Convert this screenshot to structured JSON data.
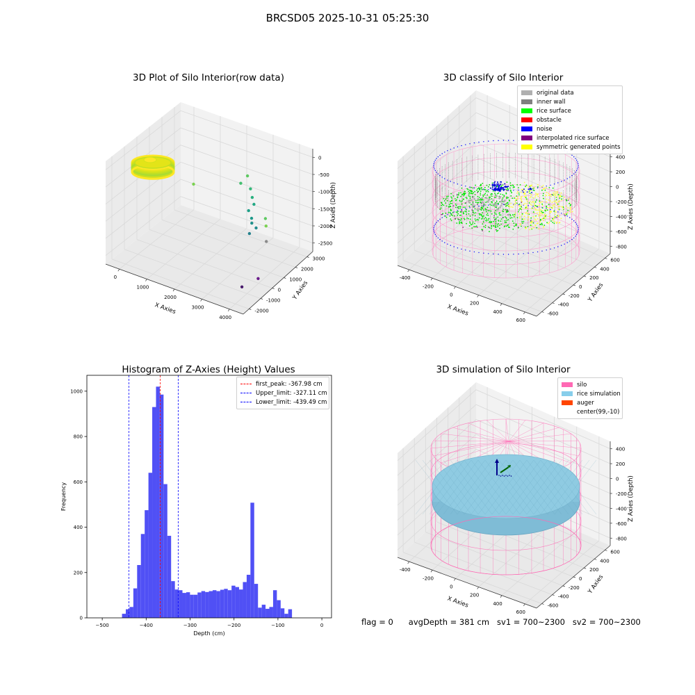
{
  "figure": {
    "suptitle": "BRCSD05 2025-10-31 05:25:30",
    "status": {
      "flag": "flag = 0",
      "avg_depth": "avgDepth = 381 cm",
      "sv1": "sv1 = 700~2300",
      "sv2": "sv2 = 700~2300"
    }
  },
  "chart_data": [
    {
      "type": "scatter",
      "panel": "raw",
      "title": "3D Plot of Silo Interior(row data)",
      "xlabel": "X Axies",
      "ylabel": "Y Axies",
      "zlabel": "Z Axies (Depth)",
      "x_ticks": [
        "0",
        "1000",
        "2000",
        "3000",
        "4000"
      ],
      "y_ticks": [
        "-2000",
        "-1000",
        "0",
        "1000",
        "2000",
        "3000"
      ],
      "z_ticks": [
        "0",
        "-500",
        "-1000",
        "-1500",
        "-2000",
        "-2500"
      ],
      "cluster": {
        "x_range": [
          -500,
          700
        ],
        "y_range": [
          -700,
          700
        ],
        "z_range": [
          -250,
          -700
        ]
      },
      "scattered_points": [
        {
          "x": 450,
          "y": 2000,
          "z": -1350
        },
        {
          "x": 2000,
          "y": 2800,
          "z": -900
        },
        {
          "x": 1900,
          "y": 2500,
          "z": -1050
        },
        {
          "x": 2200,
          "y": 2600,
          "z": -1150
        },
        {
          "x": 2400,
          "y": 2300,
          "z": -1250
        },
        {
          "x": 2600,
          "y": 2000,
          "z": -1300
        },
        {
          "x": 2500,
          "y": 1800,
          "z": -1450
        },
        {
          "x": 2700,
          "y": 1600,
          "z": -1550
        },
        {
          "x": 2800,
          "y": 1400,
          "z": -1600
        },
        {
          "x": 3100,
          "y": 1800,
          "z": -1500
        },
        {
          "x": 3000,
          "y": 1300,
          "z": -1650
        },
        {
          "x": 2900,
          "y": 1000,
          "z": -1750
        },
        {
          "x": 3400,
          "y": 1200,
          "z": -1450
        },
        {
          "x": 3500,
          "y": 1000,
          "z": -1800
        },
        {
          "x": 3900,
          "y": -500,
          "z": -2300
        },
        {
          "x": 3600,
          "y": -1100,
          "z": -2450
        }
      ]
    },
    {
      "type": "scatter",
      "panel": "classify",
      "title": "3D classify of Silo Interior",
      "xlabel": "X Axies",
      "ylabel": "Y Axies",
      "zlabel": "Z Axies (Depth)",
      "x_ticks": [
        "-400",
        "-200",
        "0",
        "200",
        "400",
        "600"
      ],
      "y_ticks": [
        "-600",
        "-400",
        "-200",
        "0",
        "200",
        "400",
        "600"
      ],
      "z_ticks": [
        "400",
        "200",
        "0",
        "-200",
        "-400",
        "-600",
        "-800"
      ],
      "legend": [
        {
          "label": "original data",
          "color": "#b0b0b0"
        },
        {
          "label": "inner wall",
          "color": "#808080"
        },
        {
          "label": "rice surface",
          "color": "#00ff00"
        },
        {
          "label": "obstacle",
          "color": "#ff0000"
        },
        {
          "label": "noise",
          "color": "#0000ff"
        },
        {
          "label": "interpolated rice surface",
          "color": "#800080"
        },
        {
          "label": "symmetric generated points",
          "color": "#ffff00"
        }
      ]
    },
    {
      "type": "bar",
      "panel": "histogram",
      "title": "Histogram of Z-Axies (Height) Values",
      "xlabel": "Depth (cm)",
      "ylabel": "Frequency",
      "xlim": [
        -535,
        22
      ],
      "ylim": [
        0,
        1070
      ],
      "x_ticks": [
        -500,
        -400,
        -300,
        -200,
        -100,
        0
      ],
      "y_ticks": [
        0,
        200,
        400,
        600,
        800,
        1000
      ],
      "bin_start": -455,
      "bin_width": 8.6,
      "values": [
        18,
        38,
        48,
        130,
        233,
        370,
        475,
        640,
        930,
        1020,
        985,
        590,
        362,
        162,
        125,
        122,
        110,
        113,
        102,
        102,
        112,
        118,
        114,
        118,
        122,
        118,
        124,
        128,
        122,
        142,
        136,
        125,
        158,
        190,
        508,
        150,
        45,
        58,
        40,
        48,
        122,
        78,
        42,
        18,
        38
      ],
      "lines": [
        {
          "label": "first_peak: -367.98 cm",
          "x": -367.98,
          "color": "#ff0000"
        },
        {
          "label": "Upper_limit: -327.11 cm",
          "x": -327.11,
          "color": "#0000ff"
        },
        {
          "label": "Lower_limit: -439.49 cm",
          "x": -439.49,
          "color": "#0000ff"
        }
      ],
      "bar_color": "#5050f5"
    },
    {
      "type": "scatter",
      "panel": "simulation",
      "title": "3D simulation of Silo Interior",
      "xlabel": "X Axies",
      "ylabel": "Y Axies",
      "zlabel": "Z Axies (Depth)",
      "x_ticks": [
        "-400",
        "-200",
        "0",
        "200",
        "400",
        "600"
      ],
      "y_ticks": [
        "-600",
        "-400",
        "-200",
        "0",
        "200",
        "400",
        "600"
      ],
      "z_ticks": [
        "400",
        "200",
        "0",
        "-200",
        "-400",
        "-600",
        "-800"
      ],
      "legend": [
        {
          "label": "silo",
          "color": "#ff69b4"
        },
        {
          "label": "rice simulation",
          "color": "#87ceeb"
        },
        {
          "label": "auger",
          "color": "#ff4500"
        },
        {
          "label": "center(99,-10)",
          "color": ""
        }
      ]
    }
  ]
}
